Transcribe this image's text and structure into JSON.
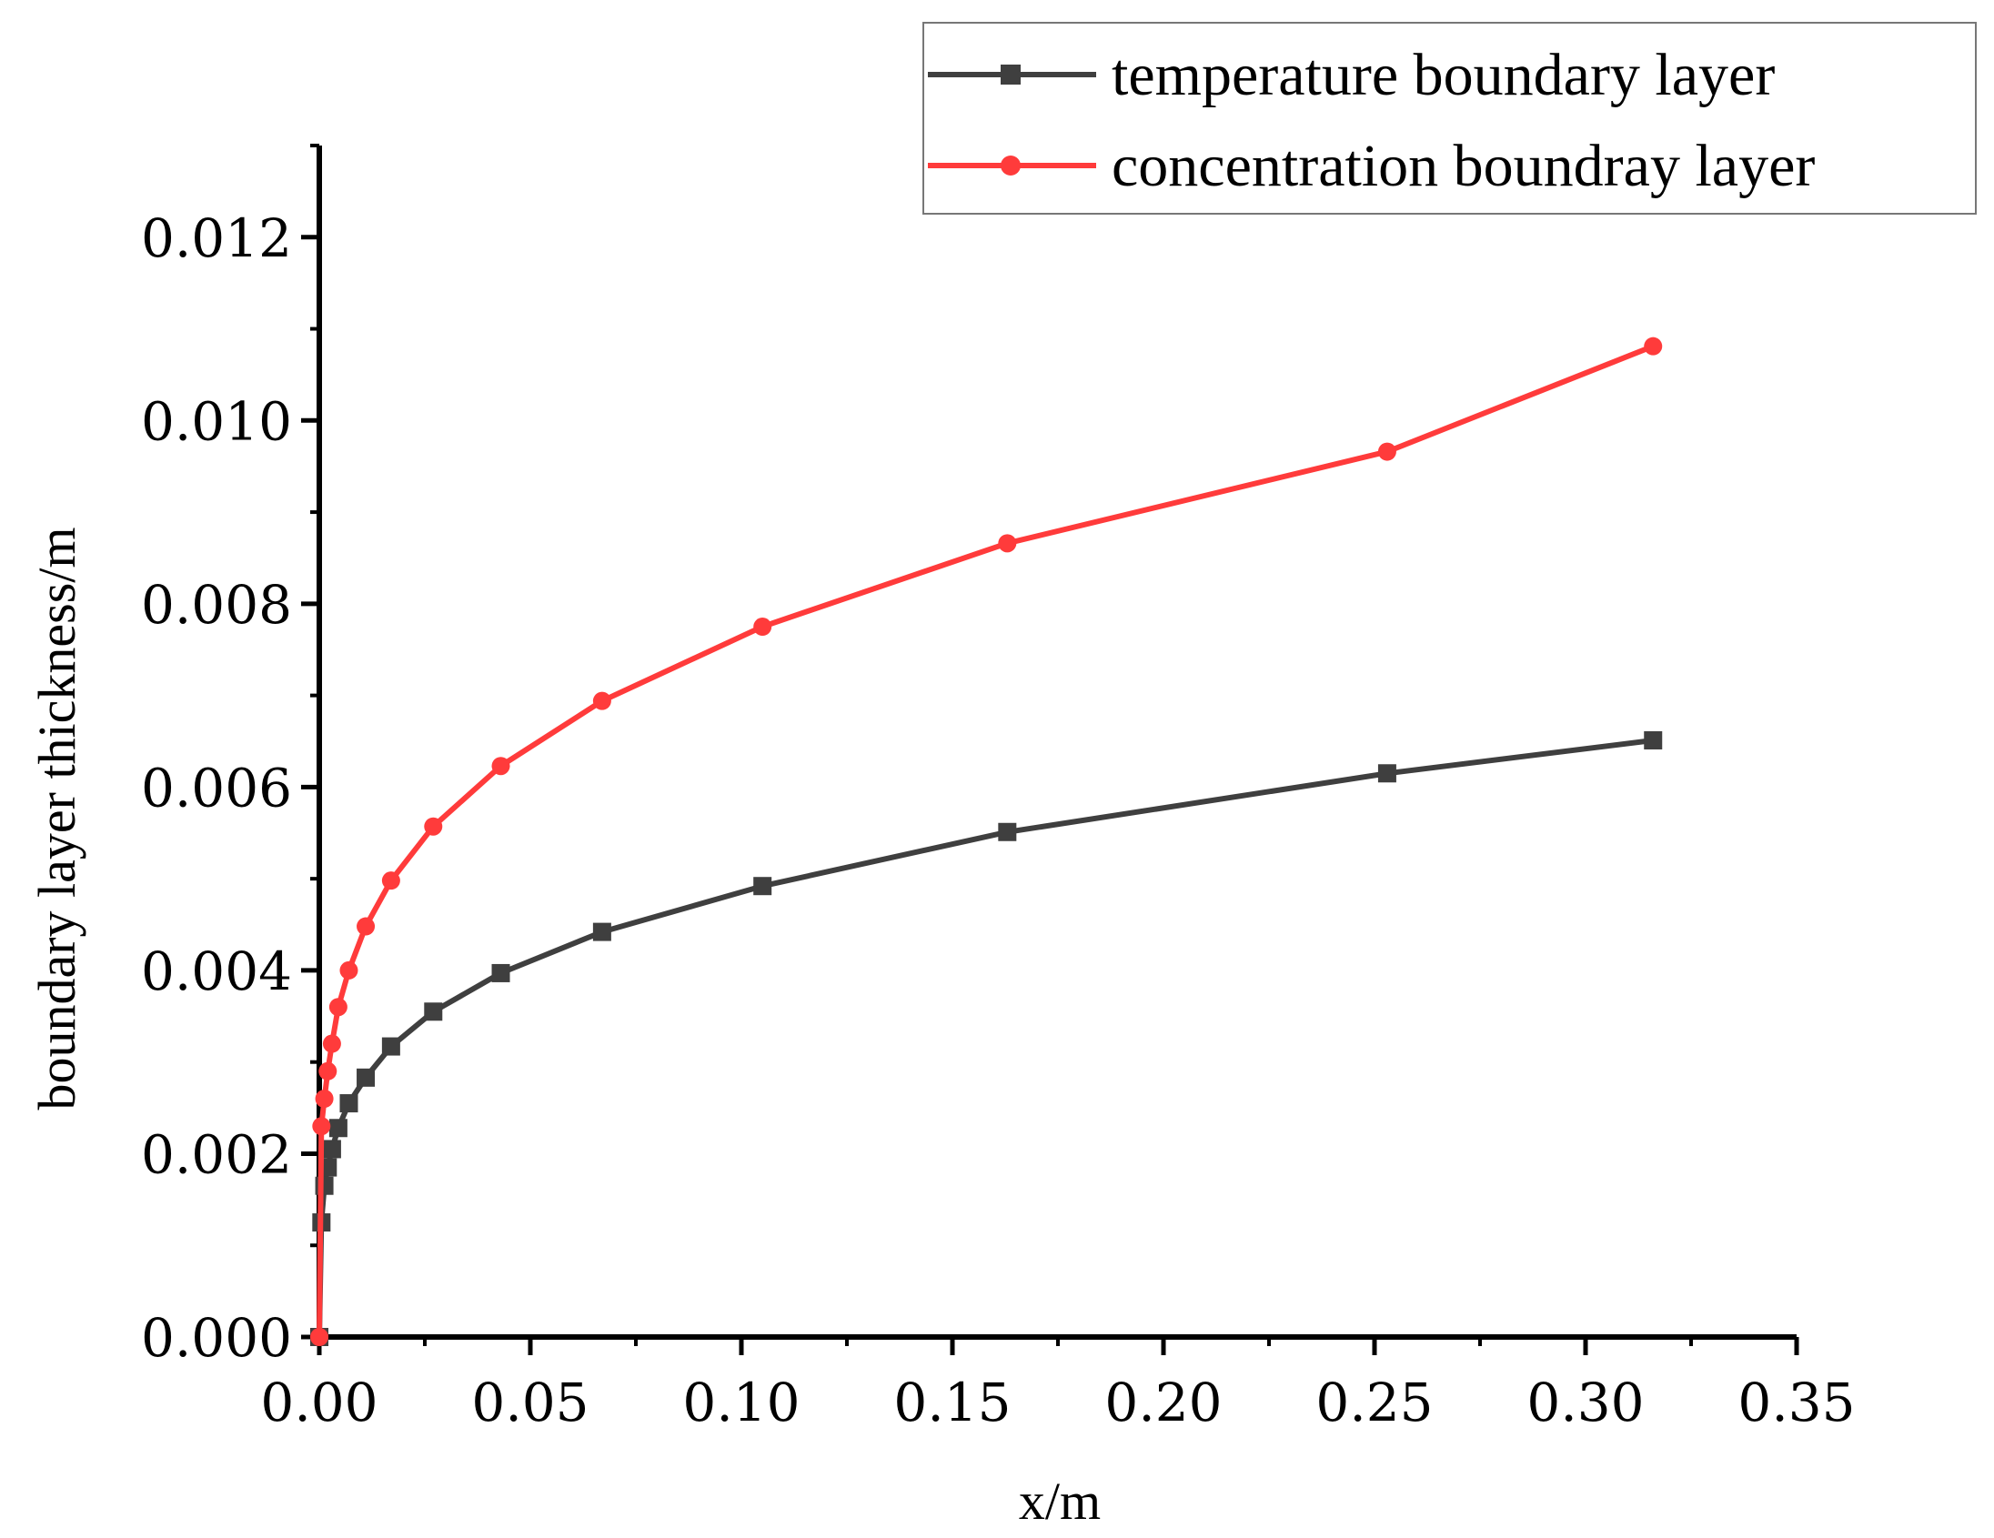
{
  "chart_data": {
    "type": "line",
    "title": "",
    "xlabel": "x/m",
    "ylabel": "boundary layer thickness/m",
    "xlim": [
      0,
      0.35
    ],
    "ylim": [
      0,
      0.013
    ],
    "x_ticks": [
      "0.00",
      "0.05",
      "0.10",
      "0.15",
      "0.20",
      "0.25",
      "0.30",
      "0.35"
    ],
    "x_tick_values": [
      0,
      0.05,
      0.1,
      0.15,
      0.2,
      0.25,
      0.3,
      0.35
    ],
    "y_ticks": [
      "0.000",
      "0.002",
      "0.004",
      "0.006",
      "0.008",
      "0.010",
      "0.012"
    ],
    "y_tick_values": [
      0,
      0.002,
      0.004,
      0.006,
      0.008,
      0.01,
      0.012
    ],
    "x_minor_step": 0.025,
    "y_minor_step": 0.001,
    "grid": false,
    "legend_position": "top-right",
    "series": [
      {
        "name": "temperature boundary layer",
        "color": "#3f3f3f",
        "marker": "square",
        "x": [
          0.0,
          0.0005,
          0.0012,
          0.002,
          0.003,
          0.0045,
          0.007,
          0.011,
          0.017,
          0.027,
          0.043,
          0.067,
          0.105,
          0.163,
          0.253,
          0.316
        ],
        "y": [
          0.0,
          0.00125,
          0.00165,
          0.00185,
          0.00205,
          0.00228,
          0.00255,
          0.00283,
          0.00317,
          0.00355,
          0.00397,
          0.00442,
          0.00492,
          0.00551,
          0.00615,
          0.00651
        ]
      },
      {
        "name": "concentration boundray layer",
        "color": "#ff3b3b",
        "marker": "circle",
        "x": [
          0.0,
          0.0005,
          0.0012,
          0.002,
          0.003,
          0.0045,
          0.007,
          0.011,
          0.017,
          0.027,
          0.043,
          0.067,
          0.105,
          0.163,
          0.253,
          0.316
        ],
        "y": [
          0.0,
          0.0023,
          0.0026,
          0.0029,
          0.0032,
          0.0036,
          0.004,
          0.00448,
          0.00498,
          0.00557,
          0.00623,
          0.00694,
          0.00775,
          0.00866,
          0.00966,
          0.01081
        ]
      }
    ]
  }
}
